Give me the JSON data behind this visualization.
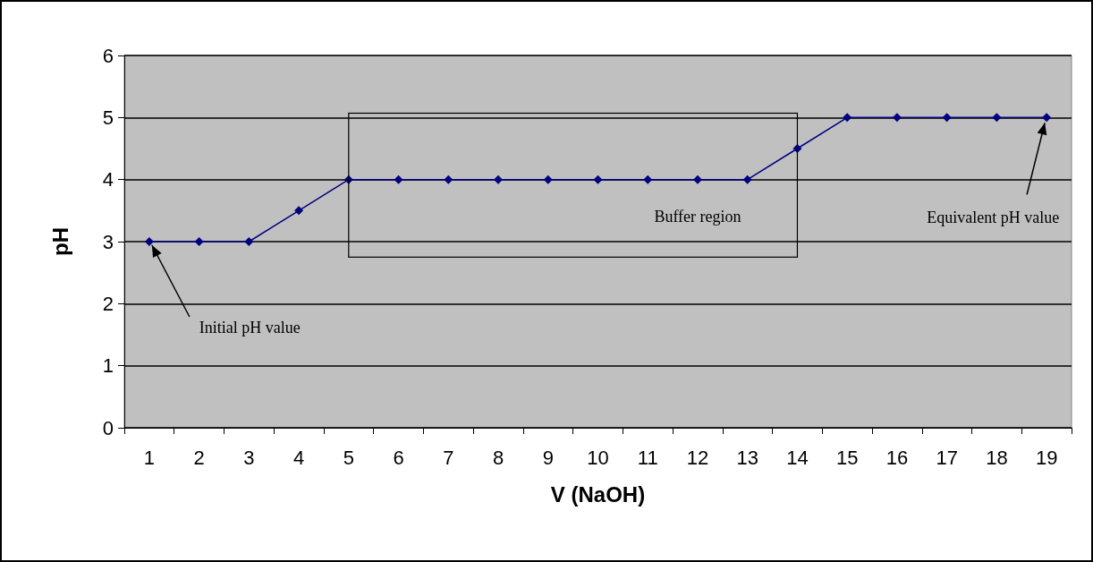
{
  "chart_data": {
    "type": "line",
    "xlabel": "V (NaOH)",
    "ylabel": "pH",
    "categories": [
      "1",
      "2",
      "3",
      "4",
      "5",
      "6",
      "7",
      "8",
      "9",
      "10",
      "11",
      "12",
      "13",
      "14",
      "15",
      "16",
      "17",
      "18",
      "19"
    ],
    "series": [
      {
        "color": "#000080",
        "values": [
          3,
          3,
          3,
          3.5,
          4,
          4,
          4,
          4,
          4,
          4,
          4,
          4,
          4,
          4.5,
          5,
          5,
          5,
          5,
          5
        ]
      }
    ],
    "ylim": [
      0,
      6
    ],
    "yticks": [
      0,
      1,
      2,
      3,
      4,
      5,
      6
    ],
    "grid": "y",
    "marker": "diamond",
    "line_style": "solid",
    "annotations": [
      {
        "text": "Initial pH value",
        "x": "1",
        "y": 3
      },
      "Buffer region",
      {
        "text": "Equivalent pH value",
        "x": "19",
        "y": 5
      }
    ]
  }
}
